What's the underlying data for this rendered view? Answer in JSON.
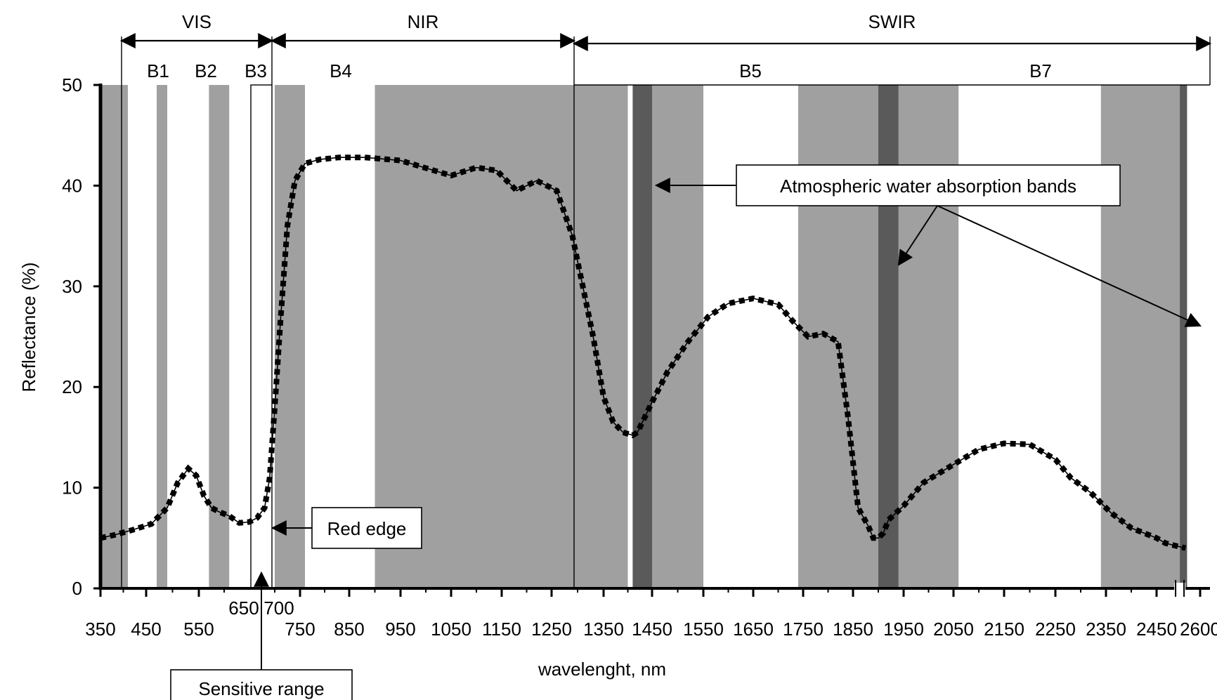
{
  "chart_data": {
    "type": "line",
    "xlabel": "wavelenght, nm",
    "ylabel": "Reflectance (%)",
    "xlim": [
      350,
      2600
    ],
    "ylim": [
      0,
      50
    ],
    "xticks": [
      350,
      450,
      550,
      750,
      850,
      950,
      1050,
      1150,
      1250,
      1350,
      1450,
      1550,
      1650,
      1750,
      1850,
      1950,
      2050,
      2150,
      2250,
      2350,
      2450,
      2600
    ],
    "xtick_labels": [
      "350",
      "450",
      "550",
      "750",
      "850",
      "950",
      "1050",
      "1150",
      "1250",
      "1350",
      "1450",
      "1550",
      "1650",
      "1750",
      "1850",
      "1950",
      "2050",
      "2150",
      "2250",
      "2350",
      "2450",
      "2600"
    ],
    "yticks": [
      0,
      10,
      20,
      30,
      40,
      50
    ],
    "ytick_labels": [
      "0",
      "10",
      "20",
      "30",
      "40",
      "50"
    ],
    "minor_ticks": [
      400,
      500,
      600,
      700,
      800,
      900,
      1000,
      1100,
      1200,
      1300,
      1400,
      1500,
      1600,
      1700,
      1800,
      1900,
      2000,
      2100,
      2200,
      2300,
      2400
    ],
    "axis_break_at": 2530,
    "colors": {
      "band_fill": "#a0a0a0",
      "absorption_fill": "#5a5a5a",
      "curve": "#000000"
    },
    "series": [
      {
        "x": [
          350,
          380,
          420,
          460,
          490,
          510,
          530,
          545,
          560,
          575,
          590,
          610,
          630,
          650,
          665,
          680,
          690,
          700,
          712,
          725,
          740,
          760,
          790,
          830,
          880,
          950,
          1050,
          1100,
          1140,
          1180,
          1220,
          1260,
          1290,
          1330,
          1350,
          1370,
          1390,
          1410,
          1420,
          1430,
          1450,
          1480,
          1520,
          1560,
          1600,
          1650,
          1700,
          1730,
          1760,
          1790,
          1820,
          1840,
          1860,
          1880,
          1890,
          1900,
          1910,
          1920,
          1950,
          1990,
          2050,
          2100,
          2150,
          2200,
          2250,
          2280,
          2320,
          2360,
          2400,
          2450,
          2480,
          2520,
          2550
        ],
        "y": [
          5,
          5.3,
          5.8,
          6.4,
          8,
          10.5,
          11.9,
          11.2,
          9.2,
          8,
          7.6,
          7.2,
          6.5,
          6.6,
          7,
          8,
          11,
          18,
          27,
          36,
          40.5,
          42.2,
          42.6,
          42.8,
          42.8,
          42.5,
          41,
          41.8,
          41.5,
          39.5,
          40.5,
          39.5,
          35,
          25,
          19,
          16.5,
          15.5,
          15.2,
          15.5,
          16.5,
          18.5,
          21.5,
          24.5,
          27,
          28.3,
          28.8,
          28.2,
          26.5,
          25,
          25.3,
          24.5,
          17,
          8,
          6.2,
          5,
          5,
          5.5,
          6.8,
          8.2,
          10.5,
          12.3,
          13.8,
          14.4,
          14.3,
          12.8,
          11,
          9.5,
          7.5,
          6,
          5,
          4.5,
          4.2,
          4
        ]
      }
    ],
    "shaded_bands": [
      [
        350,
        410
      ],
      [
        470,
        490
      ],
      [
        570,
        610
      ],
      [
        700,
        760
      ],
      [
        900,
        1400
      ],
      [
        1450,
        1550
      ],
      [
        1740,
        1900
      ],
      [
        1940,
        2060
      ],
      [
        2340,
        2530
      ]
    ],
    "absorption_bands": [
      [
        1410,
        1450
      ],
      [
        1900,
        1940
      ],
      [
        2530,
        2555
      ]
    ],
    "region_labels": [
      {
        "label": "VIS",
        "from": 390,
        "to": 700
      },
      {
        "label": "NIR",
        "from": 700,
        "to": 1300
      },
      {
        "label": "SWIR",
        "from": 1300,
        "to": 2555
      }
    ],
    "band_labels": [
      {
        "label": "B1",
        "x": 460
      },
      {
        "label": "B2",
        "x": 545
      },
      {
        "label": "B3",
        "x": 665
      },
      {
        "label": "B4",
        "x": 800
      },
      {
        "label": "B5",
        "x": 1650
      },
      {
        "label": "B7",
        "x": 2220
      }
    ],
    "sensitive_range": {
      "from": 650,
      "to": 700,
      "label_650": "650",
      "label_700": "700"
    },
    "annotations": {
      "red_edge": "Red edge",
      "sensitive_range": "Sensitive range",
      "water_bands": "Atmospheric water absorption bands"
    }
  }
}
